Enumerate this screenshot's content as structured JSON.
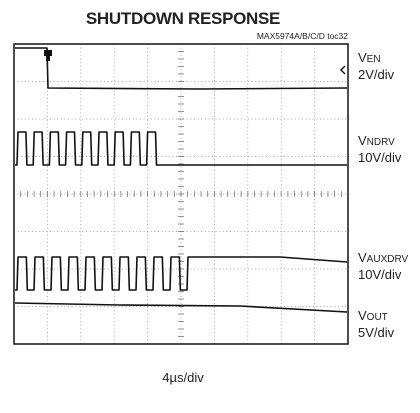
{
  "title": "SHUTDOWN RESPONSE",
  "note": "MAX5974A/B/C/D toc32",
  "channels": [
    {
      "name": "V",
      "subscript": "EN",
      "scale": "2V/div"
    },
    {
      "name": "V",
      "subscript": "NDRV",
      "scale": "10V/div"
    },
    {
      "name": "V",
      "subscript": "AUXDRV",
      "scale": "10V/div"
    },
    {
      "name": "V",
      "subscript": "OUT",
      "scale": "5V/div"
    }
  ],
  "time_scale": "4µs/div"
}
